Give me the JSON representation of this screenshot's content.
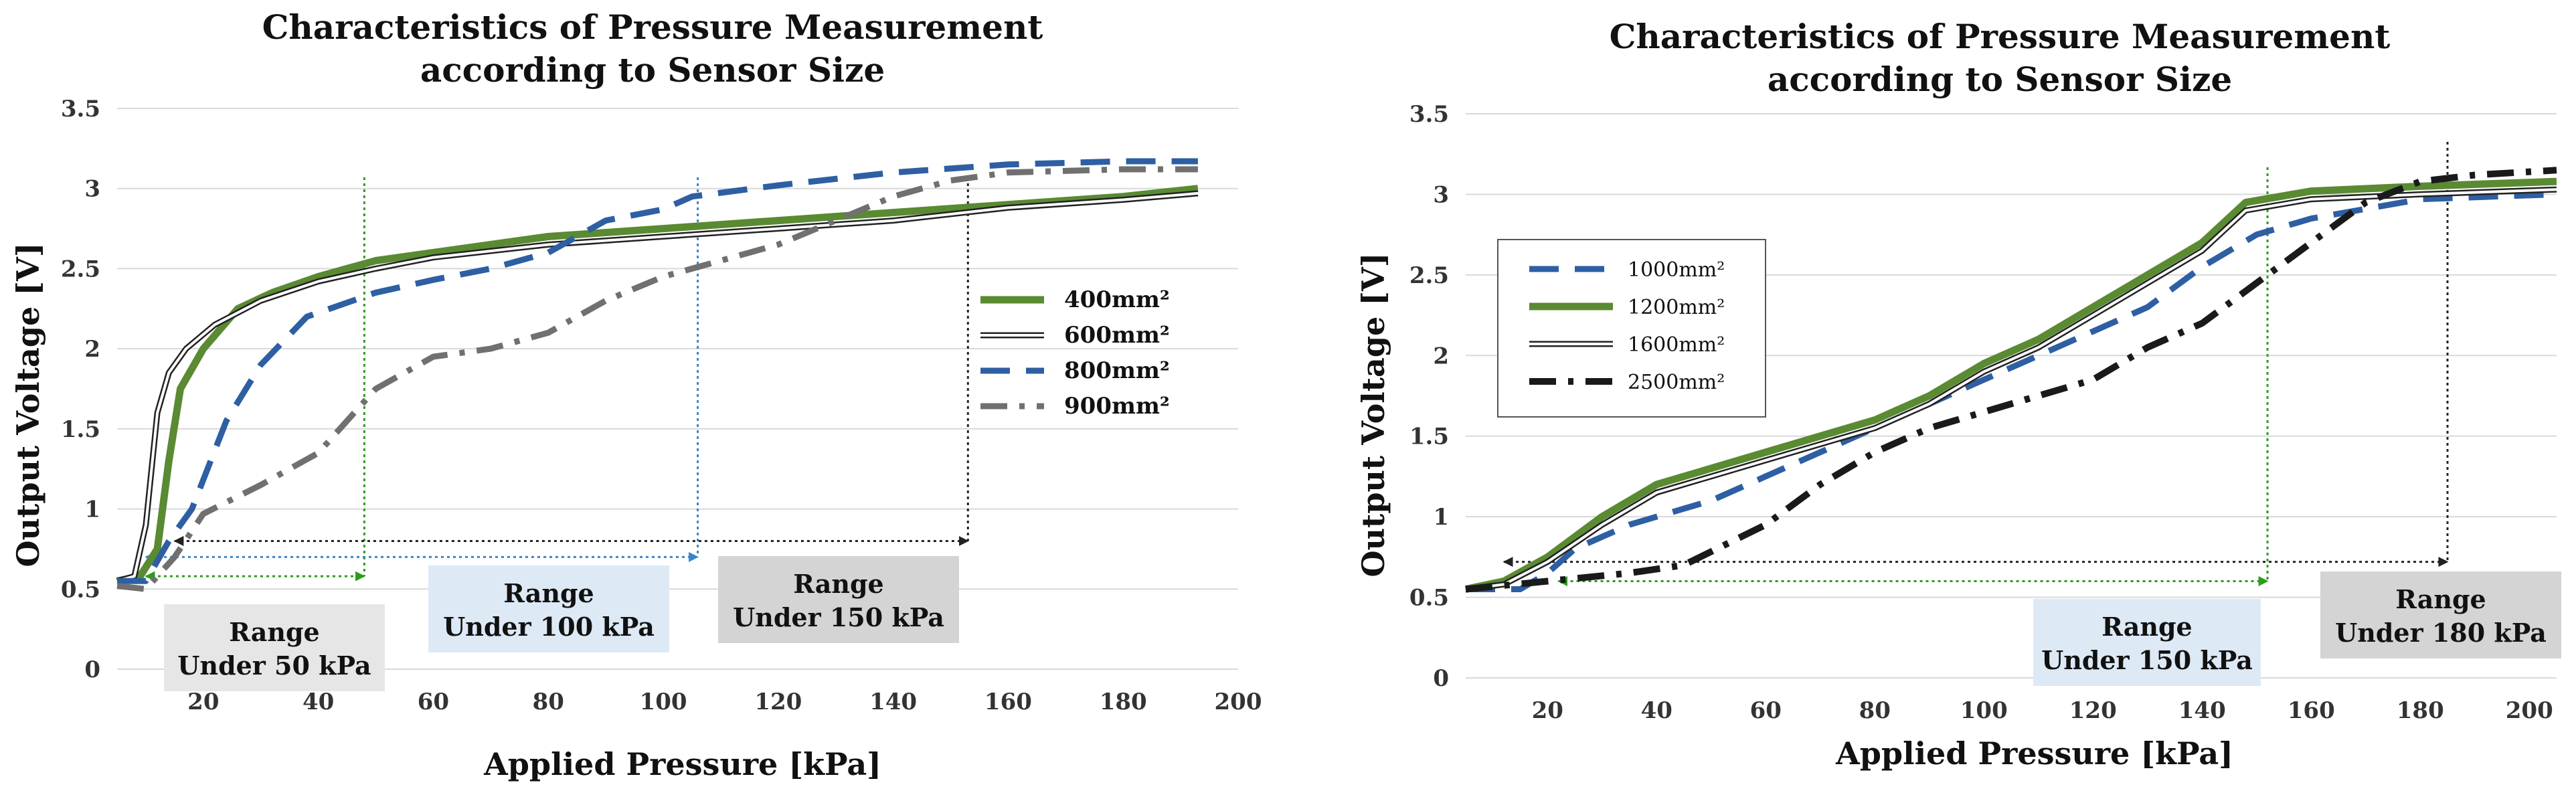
{
  "chart_data": [
    {
      "type": "line",
      "title": [
        "Characteristics of Pressure Measurement",
        "according to Sensor Size"
      ],
      "xlabel": "Applied Pressure [kPa]",
      "ylabel": "Output Voltage [V]",
      "xlim": [
        5,
        200
      ],
      "ylim": [
        0,
        3.5
      ],
      "x_ticks": [
        20,
        40,
        60,
        80,
        100,
        120,
        140,
        160,
        180,
        200
      ],
      "y_ticks": [
        0,
        0.5,
        1,
        1.5,
        2,
        2.5,
        3,
        3.5
      ],
      "grid": true,
      "legend_position": "right",
      "series": [
        {
          "name": "400mm²",
          "style": "green-solid",
          "color": "#5a8a32",
          "points": [
            [
              5,
              0.55
            ],
            [
              9,
              0.58
            ],
            [
              12,
              0.75
            ],
            [
              14,
              1.3
            ],
            [
              16,
              1.75
            ],
            [
              20,
              2.0
            ],
            [
              26,
              2.25
            ],
            [
              32,
              2.35
            ],
            [
              40,
              2.45
            ],
            [
              50,
              2.55
            ],
            [
              60,
              2.6
            ],
            [
              80,
              2.7
            ],
            [
              100,
              2.75
            ],
            [
              120,
              2.8
            ],
            [
              140,
              2.85
            ],
            [
              160,
              2.9
            ],
            [
              180,
              2.95
            ],
            [
              193,
              3.0
            ]
          ]
        },
        {
          "name": "600mm²",
          "style": "double-line",
          "color": "#222222",
          "points": [
            [
              5,
              0.55
            ],
            [
              8,
              0.58
            ],
            [
              10,
              0.9
            ],
            [
              12,
              1.6
            ],
            [
              14,
              1.85
            ],
            [
              17,
              2.0
            ],
            [
              22,
              2.15
            ],
            [
              30,
              2.3
            ],
            [
              40,
              2.42
            ],
            [
              50,
              2.5
            ],
            [
              60,
              2.57
            ],
            [
              80,
              2.65
            ],
            [
              100,
              2.7
            ],
            [
              120,
              2.75
            ],
            [
              140,
              2.8
            ],
            [
              160,
              2.88
            ],
            [
              180,
              2.93
            ],
            [
              193,
              2.97
            ]
          ]
        },
        {
          "name": "800mm²",
          "style": "blue-dash",
          "color": "#2e5fa3",
          "points": [
            [
              5,
              0.55
            ],
            [
              10,
              0.55
            ],
            [
              14,
              0.8
            ],
            [
              18,
              1.0
            ],
            [
              24,
              1.55
            ],
            [
              30,
              1.9
            ],
            [
              38,
              2.2
            ],
            [
              50,
              2.35
            ],
            [
              60,
              2.43
            ],
            [
              70,
              2.5
            ],
            [
              80,
              2.6
            ],
            [
              90,
              2.8
            ],
            [
              100,
              2.87
            ],
            [
              105,
              2.95
            ],
            [
              120,
              3.02
            ],
            [
              140,
              3.1
            ],
            [
              160,
              3.15
            ],
            [
              180,
              3.17
            ],
            [
              193,
              3.17
            ]
          ]
        },
        {
          "name": "900mm²",
          "style": "gray-dashdot",
          "color": "#707070",
          "points": [
            [
              5,
              0.52
            ],
            [
              10,
              0.5
            ],
            [
              15,
              0.7
            ],
            [
              20,
              0.97
            ],
            [
              30,
              1.15
            ],
            [
              40,
              1.35
            ],
            [
              50,
              1.75
            ],
            [
              60,
              1.95
            ],
            [
              70,
              2.0
            ],
            [
              80,
              2.1
            ],
            [
              90,
              2.3
            ],
            [
              100,
              2.45
            ],
            [
              110,
              2.55
            ],
            [
              120,
              2.65
            ],
            [
              130,
              2.8
            ],
            [
              140,
              2.95
            ],
            [
              150,
              3.05
            ],
            [
              160,
              3.1
            ],
            [
              180,
              3.12
            ],
            [
              193,
              3.12
            ]
          ]
        }
      ],
      "annotations": [
        {
          "label_lines": [
            "Range",
            "Under 50 kPa"
          ],
          "x_start": 10,
          "x_end": 48,
          "arrow_y": 0.58,
          "vline_color": "#2e9b1e",
          "box_color": "#e6e6e6"
        },
        {
          "label_lines": [
            "Range",
            "Under 100 kPa"
          ],
          "x_start": 10,
          "x_end": 106,
          "arrow_y": 0.7,
          "vline_color": "#3a86c8",
          "box_color": "#dde9f5"
        },
        {
          "label_lines": [
            "Range",
            "Under 150 kPa"
          ],
          "x_start": 15,
          "x_end": 153,
          "arrow_y": 0.8,
          "vline_color": "#222222",
          "box_color": "#d4d4d4"
        }
      ]
    },
    {
      "type": "line",
      "title": [
        "Characteristics of Pressure Measurement",
        "according to Sensor Size"
      ],
      "xlabel": "Applied Pressure [kPa]",
      "ylabel": "Output Voltage [V]",
      "xlim": [
        5,
        205
      ],
      "ylim": [
        0,
        3.5
      ],
      "x_ticks": [
        20,
        40,
        60,
        80,
        100,
        120,
        140,
        160,
        180,
        200
      ],
      "y_ticks": [
        0,
        0.5,
        1,
        1.5,
        2,
        2.5,
        3,
        3.5
      ],
      "grid": true,
      "legend_position": "top-left",
      "series": [
        {
          "name": "1000mm²",
          "style": "blue-dash",
          "color": "#2e5fa3",
          "points": [
            [
              5,
              0.55
            ],
            [
              15,
              0.55
            ],
            [
              20,
              0.65
            ],
            [
              25,
              0.8
            ],
            [
              35,
              0.95
            ],
            [
              50,
              1.1
            ],
            [
              60,
              1.25
            ],
            [
              70,
              1.4
            ],
            [
              80,
              1.55
            ],
            [
              90,
              1.7
            ],
            [
              100,
              1.85
            ],
            [
              110,
              2.0
            ],
            [
              120,
              2.15
            ],
            [
              130,
              2.3
            ],
            [
              140,
              2.55
            ],
            [
              150,
              2.75
            ],
            [
              160,
              2.85
            ],
            [
              180,
              2.97
            ],
            [
              205,
              3.0
            ]
          ]
        },
        {
          "name": "1200mm²",
          "style": "green-solid",
          "color": "#5a8a32",
          "points": [
            [
              5,
              0.55
            ],
            [
              12,
              0.6
            ],
            [
              20,
              0.75
            ],
            [
              30,
              1.0
            ],
            [
              40,
              1.2
            ],
            [
              50,
              1.3
            ],
            [
              60,
              1.4
            ],
            [
              70,
              1.5
            ],
            [
              80,
              1.6
            ],
            [
              90,
              1.75
            ],
            [
              100,
              1.95
            ],
            [
              110,
              2.1
            ],
            [
              120,
              2.3
            ],
            [
              130,
              2.5
            ],
            [
              140,
              2.7
            ],
            [
              148,
              2.95
            ],
            [
              160,
              3.02
            ],
            [
              180,
              3.05
            ],
            [
              205,
              3.08
            ]
          ]
        },
        {
          "name": "1600mm²",
          "style": "double-line",
          "color": "#222222",
          "points": [
            [
              5,
              0.55
            ],
            [
              12,
              0.58
            ],
            [
              20,
              0.72
            ],
            [
              30,
              0.95
            ],
            [
              40,
              1.15
            ],
            [
              50,
              1.25
            ],
            [
              60,
              1.35
            ],
            [
              70,
              1.45
            ],
            [
              80,
              1.55
            ],
            [
              90,
              1.7
            ],
            [
              100,
              1.9
            ],
            [
              110,
              2.05
            ],
            [
              120,
              2.25
            ],
            [
              130,
              2.45
            ],
            [
              140,
              2.65
            ],
            [
              148,
              2.9
            ],
            [
              160,
              2.97
            ],
            [
              180,
              3.0
            ],
            [
              205,
              3.03
            ]
          ]
        },
        {
          "name": "2500mm²",
          "style": "black-dashdot",
          "color": "#1a1a1a",
          "points": [
            [
              5,
              0.55
            ],
            [
              20,
              0.6
            ],
            [
              35,
              0.65
            ],
            [
              45,
              0.7
            ],
            [
              60,
              0.95
            ],
            [
              70,
              1.2
            ],
            [
              80,
              1.4
            ],
            [
              90,
              1.55
            ],
            [
              100,
              1.65
            ],
            [
              110,
              1.75
            ],
            [
              120,
              1.85
            ],
            [
              130,
              2.05
            ],
            [
              140,
              2.2
            ],
            [
              150,
              2.45
            ],
            [
              160,
              2.7
            ],
            [
              170,
              2.95
            ],
            [
              180,
              3.08
            ],
            [
              190,
              3.12
            ],
            [
              205,
              3.15
            ]
          ]
        }
      ],
      "annotations": [
        {
          "label_lines": [
            "Range",
            "Under 150 kPa"
          ],
          "x_start": 22,
          "x_end": 152,
          "arrow_y": 0.6,
          "vline_color": "#2e9b1e",
          "box_color": "#dde9f5"
        },
        {
          "label_lines": [
            "Range",
            "Under 180 kPa"
          ],
          "x_start": 12,
          "x_end": 185,
          "arrow_y": 0.72,
          "vline_color": "#222222",
          "box_color": "#d4d4d4"
        }
      ]
    }
  ]
}
